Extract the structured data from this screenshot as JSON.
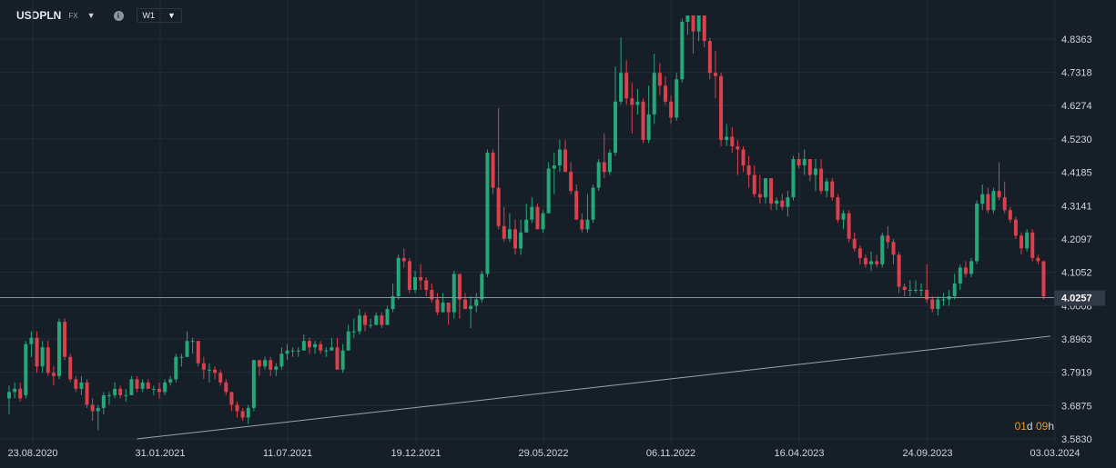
{
  "toolbar": {
    "symbol": "USDPLN",
    "market": "FX",
    "info_icon": "info-icon",
    "interval": "W1"
  },
  "countdown": {
    "d_value": "01",
    "d_unit": "d",
    "h_value": "09",
    "h_unit": "h"
  },
  "colors": {
    "up": "#26a77a",
    "down": "#d9414d",
    "grid": "#232d38",
    "trend": "#9aa4b3",
    "price_line": "#8792a0",
    "price_tag": "#2f3a46"
  },
  "chart_data": {
    "type": "candlestick",
    "symbol": "USDPLN",
    "interval": "W1",
    "y_ticks": [
      "3.5830",
      "3.6875",
      "3.7919",
      "3.8963",
      "4.0008",
      "4.1052",
      "4.2097",
      "4.3141",
      "4.4185",
      "4.5230",
      "4.6274",
      "4.7318",
      "4.8363"
    ],
    "ylim": [
      3.583,
      4.91
    ],
    "x_ticks": [
      "23.08.2020",
      "31.01.2021",
      "11.07.2021",
      "19.12.2021",
      "29.05.2022",
      "06.11.2022",
      "16.04.2023",
      "24.09.2023",
      "03.03.2024"
    ],
    "last_price": "4.0257",
    "grid": true,
    "trendline": {
      "start_date": "2021-01-01",
      "start_value": 3.583,
      "end_date": "2024-02-25",
      "end_value": 3.905
    },
    "candles": [
      [
        3.71,
        3.73,
        3.66,
        3.75
      ],
      [
        3.73,
        3.74,
        3.71,
        3.76
      ],
      [
        3.74,
        3.71,
        3.7,
        3.76
      ],
      [
        3.72,
        3.88,
        3.71,
        3.89
      ],
      [
        3.88,
        3.9,
        3.84,
        3.92
      ],
      [
        3.9,
        3.81,
        3.79,
        3.92
      ],
      [
        3.81,
        3.87,
        3.79,
        3.89
      ],
      [
        3.87,
        3.79,
        3.78,
        3.89
      ],
      [
        3.79,
        3.78,
        3.75,
        3.81
      ],
      [
        3.78,
        3.95,
        3.77,
        3.96
      ],
      [
        3.95,
        3.84,
        3.83,
        3.96
      ],
      [
        3.84,
        3.77,
        3.76,
        3.85
      ],
      [
        3.77,
        3.74,
        3.73,
        3.78
      ],
      [
        3.74,
        3.76,
        3.72,
        3.78
      ],
      [
        3.76,
        3.69,
        3.68,
        3.77
      ],
      [
        3.69,
        3.67,
        3.64,
        3.71
      ],
      [
        3.67,
        3.68,
        3.61,
        3.69
      ],
      [
        3.68,
        3.72,
        3.66,
        3.73
      ],
      [
        3.72,
        3.72,
        3.69,
        3.73
      ],
      [
        3.72,
        3.74,
        3.71,
        3.76
      ],
      [
        3.74,
        3.72,
        3.71,
        3.75
      ],
      [
        3.72,
        3.72,
        3.7,
        3.74
      ],
      [
        3.72,
        3.77,
        3.72,
        3.78
      ],
      [
        3.77,
        3.74,
        3.73,
        3.78
      ],
      [
        3.74,
        3.76,
        3.73,
        3.77
      ],
      [
        3.76,
        3.74,
        3.74,
        3.77
      ],
      [
        3.74,
        3.74,
        3.72,
        3.75
      ],
      [
        3.74,
        3.73,
        3.71,
        3.76
      ],
      [
        3.73,
        3.76,
        3.72,
        3.77
      ],
      [
        3.76,
        3.77,
        3.75,
        3.78
      ],
      [
        3.77,
        3.84,
        3.76,
        3.85
      ],
      [
        3.84,
        3.84,
        3.81,
        3.85
      ],
      [
        3.84,
        3.89,
        3.84,
        3.92
      ],
      [
        3.89,
        3.89,
        3.85,
        3.9
      ],
      [
        3.89,
        3.82,
        3.81,
        3.89
      ],
      [
        3.82,
        3.8,
        3.77,
        3.84
      ],
      [
        3.8,
        3.8,
        3.76,
        3.82
      ],
      [
        3.8,
        3.79,
        3.77,
        3.81
      ],
      [
        3.79,
        3.76,
        3.75,
        3.8
      ],
      [
        3.76,
        3.73,
        3.72,
        3.77
      ],
      [
        3.73,
        3.69,
        3.67,
        3.73
      ],
      [
        3.69,
        3.67,
        3.65,
        3.7
      ],
      [
        3.67,
        3.65,
        3.64,
        3.68
      ],
      [
        3.65,
        3.68,
        3.63,
        3.69
      ],
      [
        3.68,
        3.83,
        3.67,
        3.83
      ],
      [
        3.83,
        3.81,
        3.78,
        3.83
      ],
      [
        3.81,
        3.83,
        3.8,
        3.84
      ],
      [
        3.83,
        3.8,
        3.78,
        3.84
      ],
      [
        3.8,
        3.81,
        3.78,
        3.82
      ],
      [
        3.81,
        3.85,
        3.8,
        3.87
      ],
      [
        3.85,
        3.86,
        3.83,
        3.88
      ],
      [
        3.86,
        3.86,
        3.84,
        3.87
      ],
      [
        3.86,
        3.86,
        3.84,
        3.87
      ],
      [
        3.86,
        3.89,
        3.86,
        3.91
      ],
      [
        3.89,
        3.87,
        3.85,
        3.9
      ],
      [
        3.87,
        3.88,
        3.85,
        3.89
      ],
      [
        3.88,
        3.86,
        3.85,
        3.89
      ],
      [
        3.86,
        3.86,
        3.84,
        3.87
      ],
      [
        3.86,
        3.87,
        3.86,
        3.9
      ],
      [
        3.87,
        3.8,
        3.8,
        3.9
      ],
      [
        3.8,
        3.86,
        3.79,
        3.88
      ],
      [
        3.86,
        3.92,
        3.86,
        3.94
      ],
      [
        3.92,
        3.92,
        3.9,
        3.96
      ],
      [
        3.92,
        3.97,
        3.91,
        3.99
      ],
      [
        3.97,
        3.94,
        3.92,
        3.98
      ],
      [
        3.94,
        3.94,
        3.93,
        3.96
      ],
      [
        3.94,
        3.97,
        3.94,
        3.98
      ],
      [
        3.97,
        3.94,
        3.93,
        3.98
      ],
      [
        3.94,
        3.99,
        3.94,
        4.0
      ],
      [
        3.99,
        4.03,
        3.98,
        4.07
      ],
      [
        4.03,
        4.15,
        4.02,
        4.16
      ],
      [
        4.15,
        4.14,
        4.12,
        4.18
      ],
      [
        4.14,
        4.05,
        4.04,
        4.15
      ],
      [
        4.05,
        4.09,
        4.04,
        4.11
      ],
      [
        4.09,
        4.08,
        4.05,
        4.13
      ],
      [
        4.08,
        4.05,
        4.03,
        4.09
      ],
      [
        4.05,
        4.02,
        4.01,
        4.07
      ],
      [
        4.02,
        3.98,
        3.97,
        4.04
      ],
      [
        3.98,
        4.01,
        3.98,
        4.04
      ],
      [
        4.01,
        3.98,
        3.94,
        4.01
      ],
      [
        3.98,
        4.1,
        3.96,
        4.11
      ],
      [
        4.1,
        4.02,
        3.96,
        4.1
      ],
      [
        4.02,
        3.99,
        3.99,
        4.04
      ],
      [
        3.99,
        4.0,
        3.93,
        4.03
      ],
      [
        4.0,
        4.02,
        3.98,
        4.04
      ],
      [
        4.02,
        4.1,
        4.01,
        4.11
      ],
      [
        4.1,
        4.48,
        4.09,
        4.49
      ],
      [
        4.48,
        4.37,
        4.35,
        4.49
      ],
      [
        4.37,
        4.25,
        4.24,
        4.62
      ],
      [
        4.25,
        4.21,
        4.2,
        4.31
      ],
      [
        4.21,
        4.24,
        4.2,
        4.29
      ],
      [
        4.24,
        4.18,
        4.16,
        4.27
      ],
      [
        4.18,
        4.23,
        4.16,
        4.27
      ],
      [
        4.23,
        4.27,
        4.23,
        4.32
      ],
      [
        4.27,
        4.31,
        4.26,
        4.34
      ],
      [
        4.31,
        4.24,
        4.24,
        4.32
      ],
      [
        4.24,
        4.29,
        4.23,
        4.3
      ],
      [
        4.29,
        4.43,
        4.29,
        4.45
      ],
      [
        4.43,
        4.44,
        4.35,
        4.48
      ],
      [
        4.44,
        4.49,
        4.42,
        4.52
      ],
      [
        4.49,
        4.42,
        4.42,
        4.52
      ],
      [
        4.42,
        4.36,
        4.35,
        4.45
      ],
      [
        4.36,
        4.27,
        4.27,
        4.38
      ],
      [
        4.27,
        4.24,
        4.23,
        4.29
      ],
      [
        4.24,
        4.27,
        4.23,
        4.35
      ],
      [
        4.27,
        4.37,
        4.26,
        4.38
      ],
      [
        4.37,
        4.45,
        4.36,
        4.46
      ],
      [
        4.45,
        4.42,
        4.4,
        4.54
      ],
      [
        4.42,
        4.48,
        4.41,
        4.49
      ],
      [
        4.48,
        4.64,
        4.47,
        4.75
      ],
      [
        4.64,
        4.73,
        4.63,
        4.84
      ],
      [
        4.73,
        4.65,
        4.63,
        4.77
      ],
      [
        4.65,
        4.63,
        4.54,
        4.7
      ],
      [
        4.63,
        4.64,
        4.6,
        4.68
      ],
      [
        4.64,
        4.52,
        4.51,
        4.65
      ],
      [
        4.52,
        4.6,
        4.51,
        4.69
      ],
      [
        4.6,
        4.73,
        4.57,
        4.79
      ],
      [
        4.73,
        4.69,
        4.66,
        4.76
      ],
      [
        4.69,
        4.64,
        4.63,
        4.72
      ],
      [
        4.64,
        4.59,
        4.57,
        4.66
      ],
      [
        4.59,
        4.71,
        4.58,
        4.73
      ],
      [
        4.71,
        4.89,
        4.7,
        4.9
      ],
      [
        4.89,
        4.91,
        4.85,
        4.91
      ],
      [
        4.91,
        4.86,
        4.79,
        4.91
      ],
      [
        4.86,
        4.91,
        4.83,
        4.91
      ],
      [
        4.91,
        4.83,
        4.81,
        4.91
      ],
      [
        4.83,
        4.73,
        4.71,
        4.84
      ],
      [
        4.73,
        4.72,
        4.65,
        4.8
      ],
      [
        4.72,
        4.52,
        4.5,
        4.73
      ],
      [
        4.52,
        4.53,
        4.5,
        4.57
      ],
      [
        4.53,
        4.5,
        4.48,
        4.56
      ],
      [
        4.5,
        4.49,
        4.41,
        4.52
      ],
      [
        4.49,
        4.44,
        4.42,
        4.5
      ],
      [
        4.44,
        4.41,
        4.37,
        4.47
      ],
      [
        4.41,
        4.35,
        4.34,
        4.44
      ],
      [
        4.35,
        4.34,
        4.32,
        4.41
      ],
      [
        4.34,
        4.4,
        4.32,
        4.4
      ],
      [
        4.4,
        4.32,
        4.3,
        4.4
      ],
      [
        4.32,
        4.33,
        4.3,
        4.34
      ],
      [
        4.33,
        4.31,
        4.3,
        4.35
      ],
      [
        4.31,
        4.34,
        4.28,
        4.36
      ],
      [
        4.34,
        4.46,
        4.33,
        4.47
      ],
      [
        4.46,
        4.44,
        4.43,
        4.48
      ],
      [
        4.44,
        4.46,
        4.41,
        4.49
      ],
      [
        4.46,
        4.41,
        4.39,
        4.46
      ],
      [
        4.41,
        4.43,
        4.36,
        4.46
      ],
      [
        4.43,
        4.36,
        4.35,
        4.46
      ],
      [
        4.36,
        4.39,
        4.34,
        4.4
      ],
      [
        4.39,
        4.34,
        4.33,
        4.4
      ],
      [
        4.34,
        4.27,
        4.26,
        4.35
      ],
      [
        4.27,
        4.29,
        4.24,
        4.3
      ],
      [
        4.29,
        4.21,
        4.2,
        4.3
      ],
      [
        4.21,
        4.18,
        4.17,
        4.23
      ],
      [
        4.18,
        4.15,
        4.13,
        4.19
      ],
      [
        4.15,
        4.13,
        4.12,
        4.16
      ],
      [
        4.13,
        4.14,
        4.11,
        4.17
      ],
      [
        4.14,
        4.13,
        4.12,
        4.16
      ],
      [
        4.13,
        4.22,
        4.12,
        4.23
      ],
      [
        4.22,
        4.2,
        4.18,
        4.25
      ],
      [
        4.2,
        4.16,
        4.13,
        4.21
      ],
      [
        4.16,
        4.06,
        4.04,
        4.17
      ],
      [
        4.06,
        4.05,
        4.03,
        4.07
      ],
      [
        4.05,
        4.05,
        4.03,
        4.08
      ],
      [
        4.05,
        4.05,
        4.04,
        4.08
      ],
      [
        4.05,
        4.05,
        4.03,
        4.07
      ],
      [
        4.05,
        4.02,
        4.01,
        4.13
      ],
      [
        4.02,
        3.99,
        3.98,
        4.03
      ],
      [
        3.99,
        4.02,
        3.97,
        4.03
      ],
      [
        4.02,
        4.02,
        4.0,
        4.04
      ],
      [
        4.02,
        4.03,
        4.0,
        4.05
      ],
      [
        4.03,
        4.07,
        4.02,
        4.1
      ],
      [
        4.07,
        4.12,
        4.05,
        4.13
      ],
      [
        4.12,
        4.1,
        4.09,
        4.14
      ],
      [
        4.1,
        4.14,
        4.09,
        4.15
      ],
      [
        4.14,
        4.32,
        4.13,
        4.33
      ],
      [
        4.32,
        4.35,
        4.3,
        4.38
      ],
      [
        4.35,
        4.3,
        4.29,
        4.37
      ],
      [
        4.3,
        4.36,
        4.29,
        4.37
      ],
      [
        4.36,
        4.34,
        4.33,
        4.45
      ],
      [
        4.34,
        4.3,
        4.29,
        4.39
      ],
      [
        4.3,
        4.27,
        4.26,
        4.31
      ],
      [
        4.27,
        4.22,
        4.21,
        4.28
      ],
      [
        4.22,
        4.18,
        4.16,
        4.23
      ],
      [
        4.18,
        4.23,
        4.17,
        4.24
      ],
      [
        4.23,
        4.15,
        4.14,
        4.24
      ],
      [
        4.15,
        4.14,
        4.13,
        4.16
      ],
      [
        4.14,
        4.03,
        4.02,
        4.14
      ]
    ]
  }
}
